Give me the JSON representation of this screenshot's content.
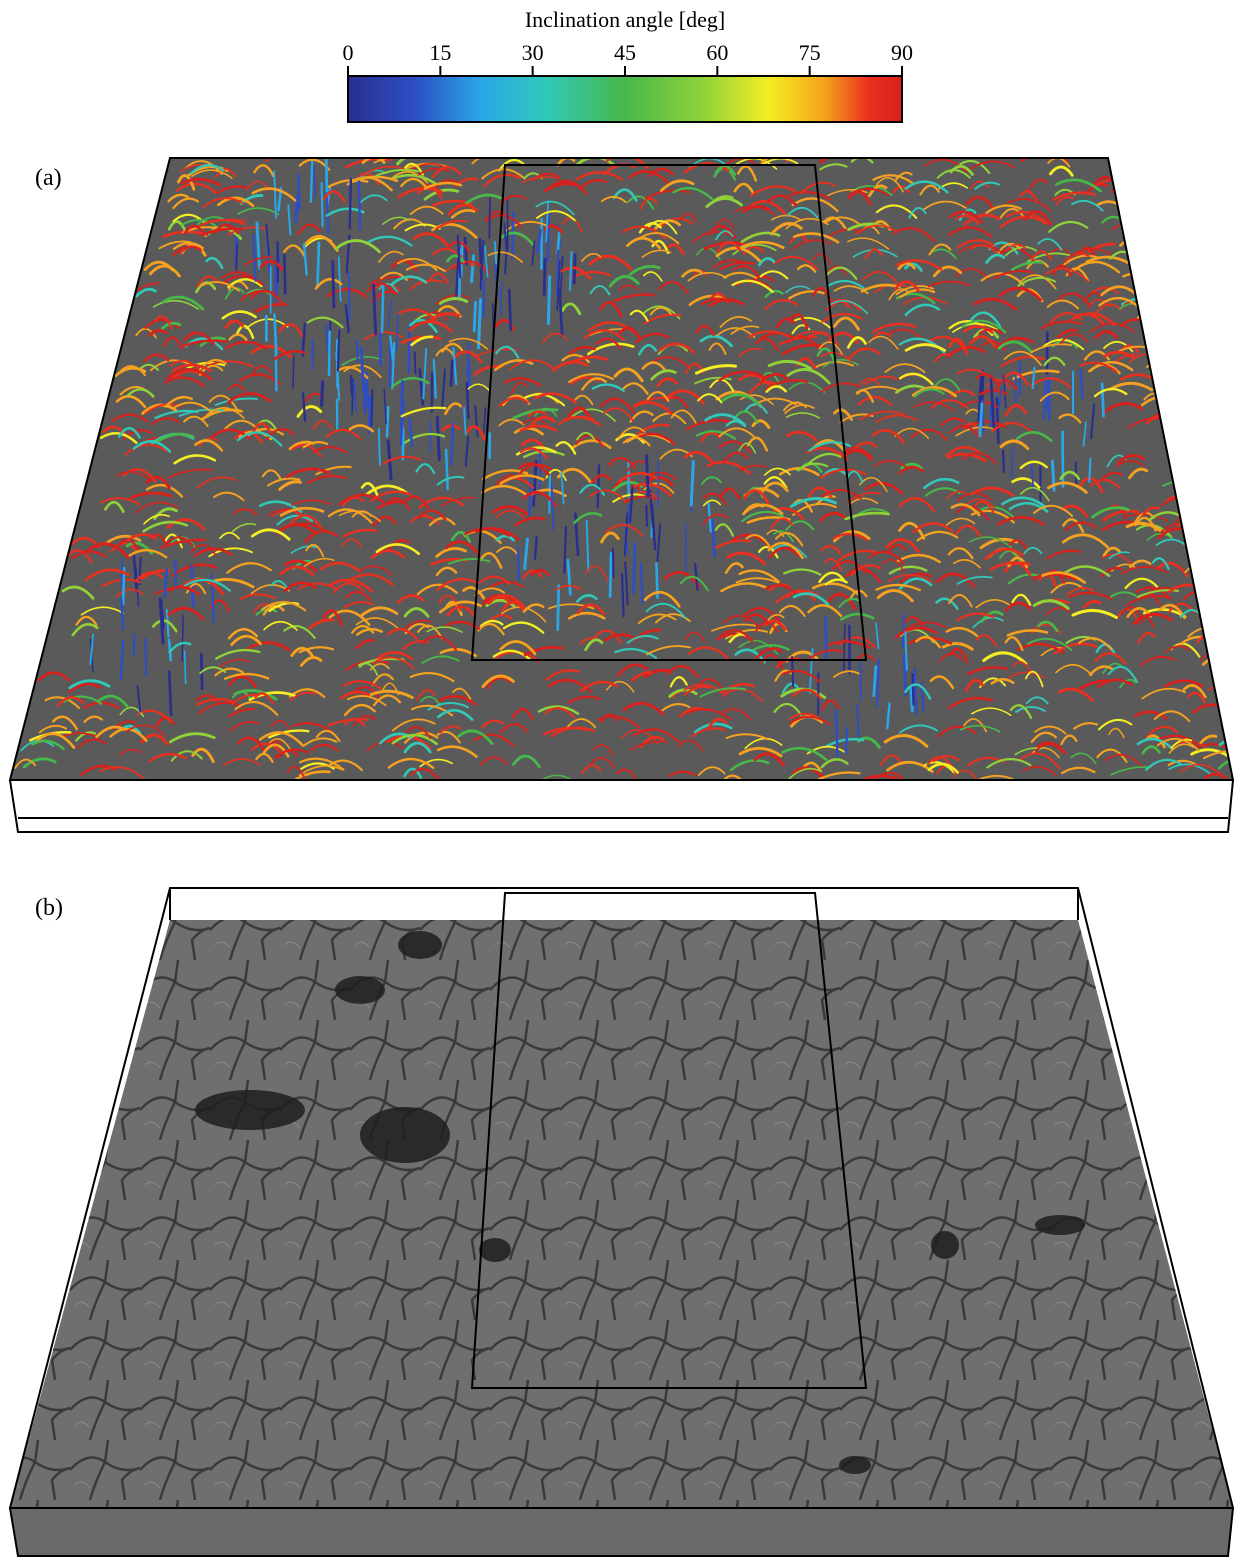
{
  "colorbar": {
    "title": "Inclination angle [deg]",
    "min": 0,
    "max": 90,
    "ticks": [
      0,
      15,
      30,
      45,
      60,
      75,
      90
    ],
    "tick_labels": [
      "0",
      "15",
      "30",
      "45",
      "60",
      "75",
      "90"
    ],
    "colormap": [
      "#2a2f8f",
      "#2d4ec4",
      "#2aa7e8",
      "#31c8b8",
      "#47b84a",
      "#8fd23a",
      "#f4ee22",
      "#f6a21e",
      "#e9301f",
      "#d8201c"
    ]
  },
  "panels": [
    {
      "label": "(a)",
      "content": "field-lines"
    },
    {
      "label": "(b)",
      "content": "granulation"
    }
  ]
}
